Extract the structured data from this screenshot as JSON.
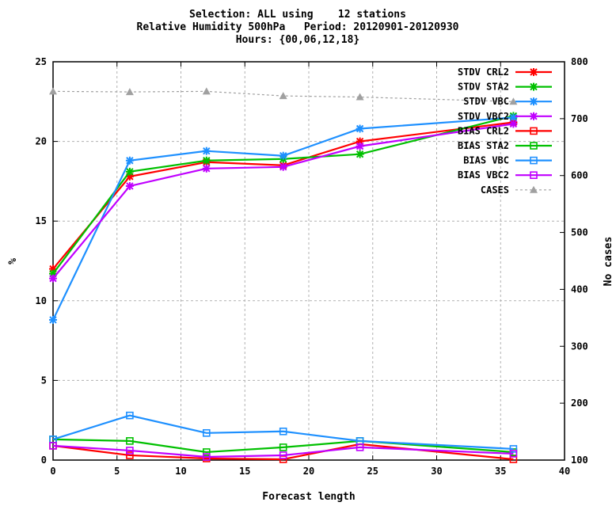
{
  "chart_data": {
    "type": "line",
    "title_lines": [
      "Selection: ALL using    12 stations",
      "Relative Humidity 500hPa   Period: 20120901-20120930",
      "Hours: {00,06,12,18}"
    ],
    "xlabel": "Forecast length",
    "ylabel": "%",
    "y2label": "No cases",
    "xlim": [
      0,
      40
    ],
    "ylim": [
      0,
      25
    ],
    "y2lim": [
      100,
      800
    ],
    "xticks": [
      "0",
      "5",
      "10",
      "15",
      "20",
      "25",
      "30",
      "35",
      "40"
    ],
    "yticks": [
      "0",
      "5",
      "10",
      "15",
      "20",
      "25"
    ],
    "y2ticks": [
      "100",
      "200",
      "300",
      "400",
      "500",
      "600",
      "700",
      "800"
    ],
    "x": [
      0,
      6,
      12,
      18,
      24,
      36
    ],
    "legend_position": "top-right",
    "grid": "dashed",
    "series": [
      {
        "name": "STDV CRL2",
        "axis": "y",
        "marker": "asterisk",
        "color": "#ff0000",
        "values": [
          12.0,
          17.8,
          18.7,
          18.5,
          20.0,
          21.2
        ]
      },
      {
        "name": "STDV STA2",
        "axis": "y",
        "marker": "asterisk",
        "color": "#00c000",
        "values": [
          11.7,
          18.1,
          18.8,
          18.9,
          19.2,
          21.6
        ]
      },
      {
        "name": "STDV VBC",
        "axis": "y",
        "marker": "asterisk",
        "color": "#1e90ff",
        "values": [
          8.8,
          18.8,
          19.4,
          19.1,
          20.8,
          21.5
        ]
      },
      {
        "name": "STDV VBC2",
        "axis": "y",
        "marker": "asterisk",
        "color": "#c000ff",
        "values": [
          11.4,
          17.2,
          18.3,
          18.4,
          19.7,
          21.1
        ]
      },
      {
        "name": "BIAS CRL2",
        "axis": "y",
        "marker": "square",
        "color": "#ff0000",
        "values": [
          0.9,
          0.3,
          0.1,
          0.05,
          1.0,
          0.05
        ]
      },
      {
        "name": "BIAS STA2",
        "axis": "y",
        "marker": "square",
        "color": "#00c000",
        "values": [
          1.3,
          1.2,
          0.5,
          0.8,
          1.2,
          0.5
        ]
      },
      {
        "name": "BIAS VBC",
        "axis": "y",
        "marker": "square",
        "color": "#1e90ff",
        "values": [
          1.3,
          2.8,
          1.7,
          1.8,
          1.2,
          0.7
        ]
      },
      {
        "name": "BIAS VBC2",
        "axis": "y",
        "marker": "square",
        "color": "#c000ff",
        "values": [
          0.9,
          0.6,
          0.2,
          0.3,
          0.8,
          0.4
        ]
      },
      {
        "name": "CASES",
        "axis": "y2",
        "marker": "triangle",
        "color": "#a0a0a0",
        "dashed": true,
        "values": [
          748,
          747,
          748,
          740,
          738,
          730
        ]
      }
    ]
  }
}
